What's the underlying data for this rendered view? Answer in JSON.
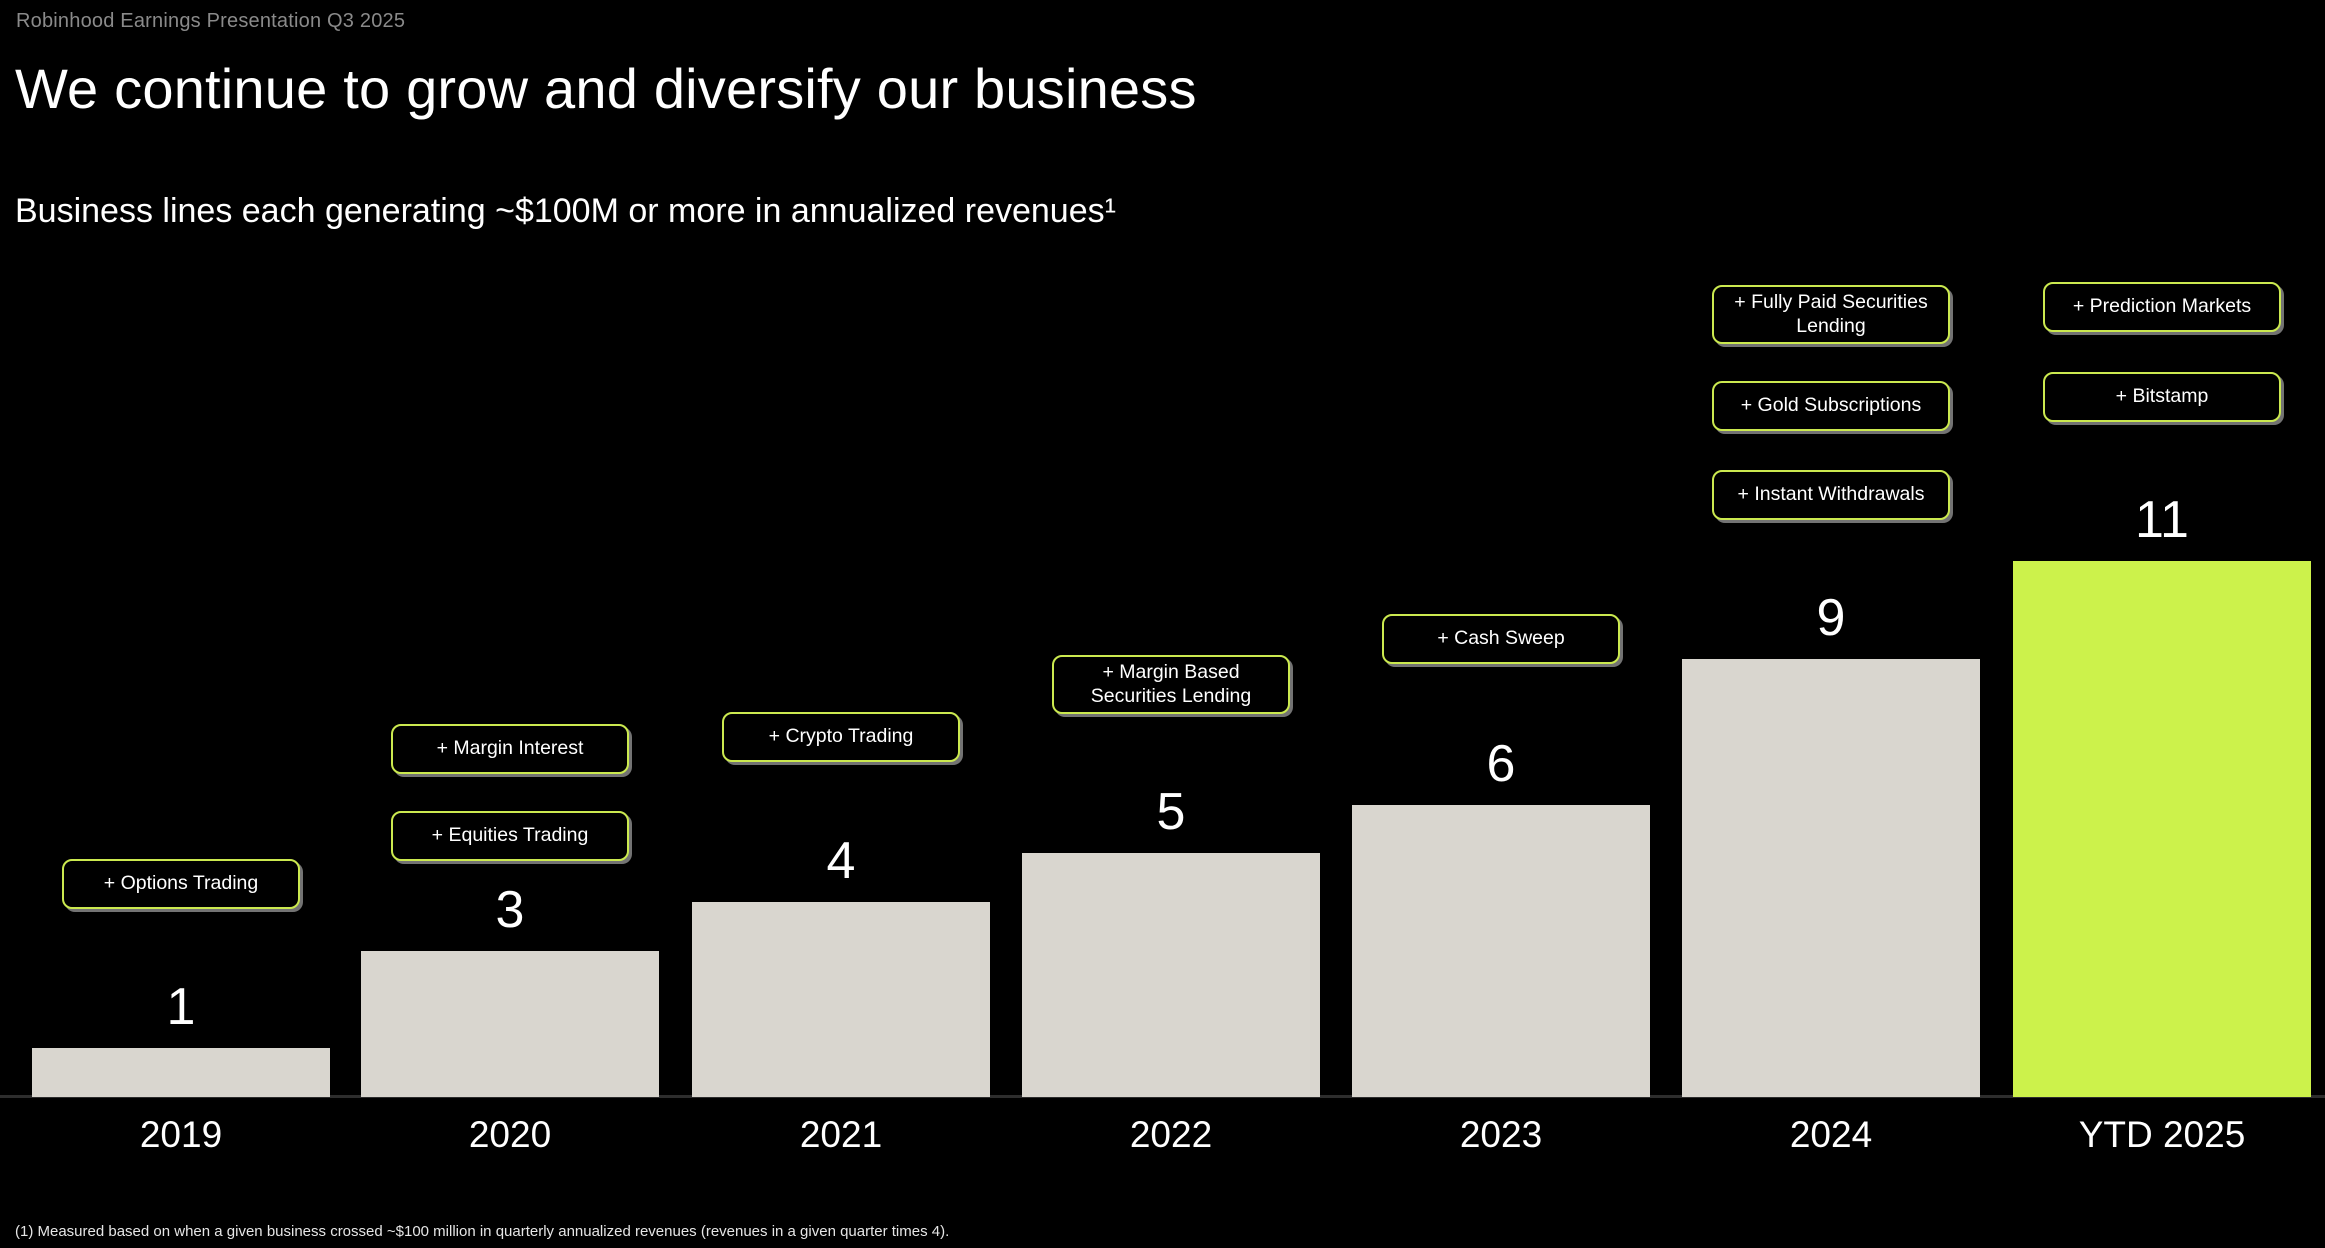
{
  "header": {
    "eyebrow": "Robinhood Earnings Presentation Q3 2025",
    "title": "We continue to grow and diversify our business",
    "subtitle": "Business lines each generating ~$100M or more in annualized revenues¹"
  },
  "chart_data": {
    "type": "bar",
    "title": "Business lines each generating ~$100M or more in annualized revenues",
    "categories": [
      "2019",
      "2020",
      "2021",
      "2022",
      "2023",
      "2024",
      "YTD 2025"
    ],
    "values": [
      1,
      3,
      4,
      5,
      6,
      9,
      11
    ],
    "ylim": [
      0,
      11
    ],
    "grid": false,
    "legend": false,
    "bar_color": "#D9D6CF",
    "highlight_color": "#CCF24B",
    "highlight_index": 6,
    "callout_border_color": "#CBE94F",
    "callouts": [
      {
        "category": "2019",
        "items": [
          "+ Options Trading"
        ]
      },
      {
        "category": "2020",
        "items": [
          "+ Margin Interest",
          "+ Equities Trading"
        ]
      },
      {
        "category": "2021",
        "items": [
          "+ Crypto Trading"
        ]
      },
      {
        "category": "2022",
        "items": [
          "+ Margin Based Securities Lending"
        ]
      },
      {
        "category": "2023",
        "items": [
          "+ Cash Sweep"
        ]
      },
      {
        "category": "2024",
        "items": [
          "+ Fully Paid Securities Lending",
          "+ Gold Subscriptions",
          "+ Instant Withdrawals"
        ]
      },
      {
        "category": "YTD 2025",
        "items": [
          "+ Prediction Markets",
          "+ Bitstamp"
        ]
      }
    ]
  },
  "footnote": "(1) Measured based on when a given business crossed ~$100 million in quarterly annualized revenues (revenues in a given quarter times 4)."
}
